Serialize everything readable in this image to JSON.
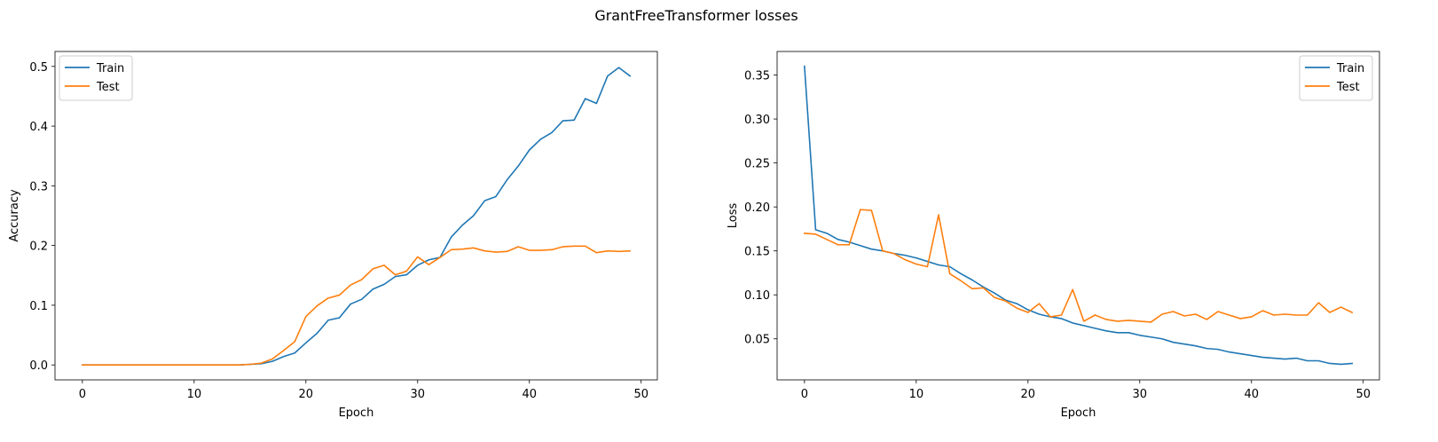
{
  "figure": {
    "suptitle": "GrantFreeTransformer losses"
  },
  "chart_data": [
    {
      "type": "line",
      "title": "",
      "xlabel": "Epoch",
      "ylabel": "Accuracy",
      "xlim": [
        -2.45,
        51.45
      ],
      "ylim": [
        -0.025,
        0.525
      ],
      "xticks": [
        0,
        10,
        20,
        30,
        40,
        50
      ],
      "yticks": [
        0.0,
        0.1,
        0.2,
        0.3,
        0.4,
        0.5
      ],
      "xtick_labels": [
        "0",
        "10",
        "20",
        "30",
        "40",
        "50"
      ],
      "ytick_labels": [
        "0.0",
        "0.1",
        "0.2",
        "0.3",
        "0.4",
        "0.5"
      ],
      "grid": false,
      "legend": "upper left",
      "x": [
        0,
        1,
        2,
        3,
        4,
        5,
        6,
        7,
        8,
        9,
        10,
        11,
        12,
        13,
        14,
        15,
        16,
        17,
        18,
        19,
        20,
        21,
        22,
        23,
        24,
        25,
        26,
        27,
        28,
        29,
        30,
        31,
        32,
        33,
        34,
        35,
        36,
        37,
        38,
        39,
        40,
        41,
        42,
        43,
        44,
        45,
        46,
        47,
        48,
        49
      ],
      "series": [
        {
          "name": "Train",
          "color": "#1f77b4",
          "values": [
            0,
            0,
            0,
            0,
            0,
            0,
            0,
            0,
            0,
            0,
            0,
            0,
            0,
            0,
            0,
            0.001,
            0.002,
            0.006,
            0.014,
            0.02,
            0.037,
            0.053,
            0.075,
            0.079,
            0.102,
            0.11,
            0.127,
            0.135,
            0.148,
            0.151,
            0.167,
            0.176,
            0.18,
            0.214,
            0.234,
            0.25,
            0.275,
            0.282,
            0.31,
            0.333,
            0.36,
            0.378,
            0.389,
            0.409,
            0.41,
            0.446,
            0.438,
            0.484,
            0.498,
            0.484
          ]
        },
        {
          "name": "Test",
          "color": "#ff7f0e",
          "values": [
            0,
            0,
            0,
            0,
            0,
            0,
            0,
            0,
            0,
            0,
            0,
            0,
            0,
            0,
            0,
            0.001,
            0.003,
            0.01,
            0.024,
            0.039,
            0.081,
            0.099,
            0.112,
            0.117,
            0.134,
            0.143,
            0.161,
            0.167,
            0.151,
            0.157,
            0.181,
            0.168,
            0.18,
            0.193,
            0.194,
            0.196,
            0.191,
            0.189,
            0.19,
            0.198,
            0.192,
            0.192,
            0.193,
            0.198,
            0.199,
            0.199,
            0.188,
            0.191,
            0.19,
            0.191
          ]
        }
      ]
    },
    {
      "type": "line",
      "title": "",
      "xlabel": "Epoch",
      "ylabel": "Loss",
      "xlim": [
        -2.45,
        51.45
      ],
      "ylim": [
        0.0033,
        0.3768
      ],
      "xticks": [
        0,
        10,
        20,
        30,
        40,
        50
      ],
      "yticks": [
        0.05,
        0.1,
        0.15,
        0.2,
        0.25,
        0.3,
        0.35
      ],
      "xtick_labels": [
        "0",
        "10",
        "20",
        "30",
        "40",
        "50"
      ],
      "ytick_labels": [
        "0.05",
        "0.10",
        "0.15",
        "0.20",
        "0.25",
        "0.30",
        "0.35"
      ],
      "grid": false,
      "legend": "upper right",
      "x": [
        0,
        1,
        2,
        3,
        4,
        5,
        6,
        7,
        8,
        9,
        10,
        11,
        12,
        13,
        14,
        15,
        16,
        17,
        18,
        19,
        20,
        21,
        22,
        23,
        24,
        25,
        26,
        27,
        28,
        29,
        30,
        31,
        32,
        33,
        34,
        35,
        36,
        37,
        38,
        39,
        40,
        41,
        42,
        43,
        44,
        45,
        46,
        47,
        48,
        49
      ],
      "series": [
        {
          "name": "Train",
          "color": "#1f77b4",
          "values": [
            0.36,
            0.174,
            0.17,
            0.163,
            0.16,
            0.156,
            0.152,
            0.15,
            0.147,
            0.145,
            0.142,
            0.138,
            0.134,
            0.132,
            0.124,
            0.117,
            0.109,
            0.102,
            0.094,
            0.09,
            0.083,
            0.078,
            0.075,
            0.073,
            0.068,
            0.065,
            0.062,
            0.059,
            0.057,
            0.057,
            0.054,
            0.052,
            0.05,
            0.046,
            0.044,
            0.042,
            0.039,
            0.038,
            0.035,
            0.033,
            0.031,
            0.029,
            0.028,
            0.027,
            0.028,
            0.025,
            0.025,
            0.022,
            0.021,
            0.022
          ]
        },
        {
          "name": "Test",
          "color": "#ff7f0e",
          "values": [
            0.17,
            0.169,
            0.163,
            0.157,
            0.157,
            0.197,
            0.196,
            0.15,
            0.147,
            0.14,
            0.135,
            0.132,
            0.191,
            0.124,
            0.116,
            0.107,
            0.108,
            0.097,
            0.093,
            0.085,
            0.08,
            0.09,
            0.075,
            0.077,
            0.106,
            0.07,
            0.077,
            0.072,
            0.07,
            0.071,
            0.07,
            0.069,
            0.078,
            0.081,
            0.076,
            0.078,
            0.072,
            0.081,
            0.077,
            0.073,
            0.075,
            0.082,
            0.077,
            0.078,
            0.077,
            0.077,
            0.091,
            0.08,
            0.086,
            0.08
          ]
        }
      ]
    }
  ]
}
